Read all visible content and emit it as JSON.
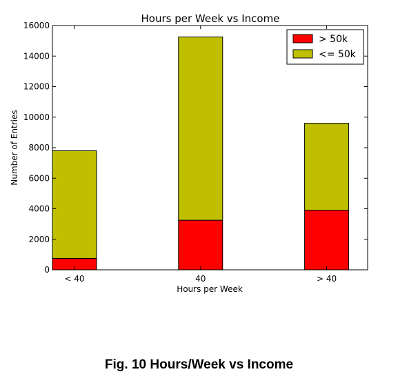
{
  "chart_data": {
    "type": "bar",
    "stacked": true,
    "title": "Hours per Week vs Income",
    "xlabel": "Hours per Week",
    "ylabel": "Number of Entries",
    "categories": [
      "< 40",
      "40",
      "> 40"
    ],
    "series": [
      {
        "name": "> 50k",
        "values": [
          750,
          3250,
          3900
        ],
        "color": "#ff0000"
      },
      {
        "name": "<= 50k",
        "values": [
          7050,
          12000,
          5700
        ],
        "color": "#bfbf00"
      }
    ],
    "ylim": [
      0,
      16000
    ],
    "yticks": [
      0,
      2000,
      4000,
      6000,
      8000,
      10000,
      12000,
      14000,
      16000
    ],
    "legend_position": "top-right",
    "grid": false
  },
  "caption": "Fig. 10 Hours/Week vs Income"
}
